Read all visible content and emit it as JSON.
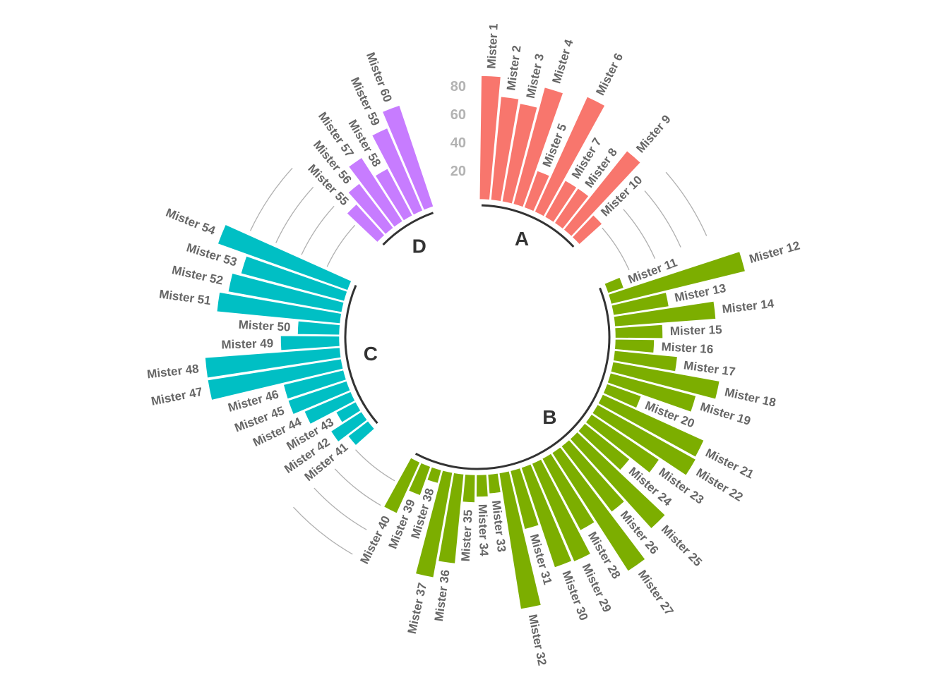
{
  "chart_data": {
    "type": "bar",
    "layout": "circular",
    "title": "",
    "ylim": [
      -100,
      120
    ],
    "y_ticks": [
      20,
      40,
      60,
      80
    ],
    "y_tick_labels": [
      "20",
      "40",
      "60",
      "80"
    ],
    "empty_bars_per_gap": 4,
    "groups": [
      {
        "name": "A",
        "color": "#F8766D"
      },
      {
        "name": "B",
        "color": "#7CAE00"
      },
      {
        "name": "C",
        "color": "#00BFC4"
      },
      {
        "name": "D",
        "color": "#C77CFF"
      }
    ],
    "series": [
      {
        "name": "A",
        "categories": [
          "Mister 1",
          "Mister 2",
          "Mister 3",
          "Mister 4",
          "Mister 5",
          "Mister 6",
          "Mister 7",
          "Mister 8",
          "Mister 9",
          "Mister 10"
        ],
        "values": [
          88,
          74,
          71,
          86,
          28,
          90,
          30,
          30,
          72,
          22
        ]
      },
      {
        "name": "B",
        "categories": [
          "Mister 11",
          "Mister 12",
          "Mister 13",
          "Mister 14",
          "Mister 15",
          "Mister 16",
          "Mister 17",
          "Mister 18",
          "Mister 19",
          "Mister 20",
          "Mister 21",
          "Mister 22",
          "Mister 23",
          "Mister 24",
          "Mister 25",
          "Mister 26",
          "Mister 27",
          "Mister 28",
          "Mister 29",
          "Mister 30",
          "Mister 31",
          "Mister 32",
          "Mister 33",
          "Mister 34",
          "Mister 35",
          "Mister 36",
          "Mister 37",
          "Mister 38",
          "Mister 39",
          "Mister 40"
        ],
        "values": [
          12,
          98,
          40,
          72,
          34,
          28,
          45,
          77,
          63,
          26,
          79,
          80,
          58,
          41,
          86,
          59,
          100,
          58,
          76,
          75,
          43,
          98,
          14,
          16,
          20,
          64,
          76,
          10,
          22,
          40
        ]
      },
      {
        "name": "C",
        "categories": [
          "Mister 41",
          "Mister 42",
          "Mister 43",
          "Mister 44",
          "Mister 45",
          "Mister 46",
          "Mister 47",
          "Mister 48",
          "Mister 49",
          "Mister 50",
          "Mister 51",
          "Mister 52",
          "Mister 53",
          "Mister 54"
        ],
        "values": [
          18,
          26,
          16,
          36,
          44,
          44,
          96,
          96,
          42,
          30,
          88,
          82,
          76,
          98
        ]
      },
      {
        "name": "D",
        "categories": [
          "Mister 55",
          "Mister 56",
          "Mister 57",
          "Mister 58",
          "Mister 59",
          "Mister 60"
        ],
        "values": [
          30,
          40,
          54,
          38,
          64,
          76
        ]
      }
    ]
  }
}
